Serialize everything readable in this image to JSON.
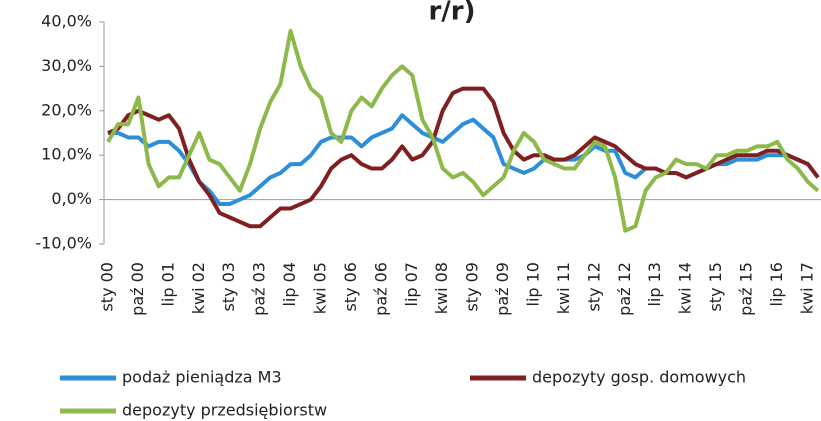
{
  "chart_data": {
    "type": "line",
    "title": "r/r)",
    "categories": [
      "sty 00",
      null,
      null,
      "paź 00",
      null,
      null,
      "lip 01",
      null,
      null,
      "kwi 02",
      null,
      null,
      "sty 03",
      null,
      null,
      "paź 03",
      null,
      null,
      "lip 04",
      null,
      null,
      "kwi 05",
      null,
      null,
      "sty 06",
      null,
      null,
      "paź 06",
      null,
      null,
      "lip 07",
      null,
      null,
      "kwi 08",
      null,
      null,
      "sty 09",
      null,
      null,
      "paź 09",
      null,
      null,
      "lip 10",
      null,
      null,
      "kwi 11",
      null,
      null,
      "sty 12",
      null,
      null,
      "paź 12",
      null,
      null,
      "lip 13",
      null,
      null,
      "kwi 14",
      null,
      null,
      "sty 15",
      null,
      null,
      "paź 15",
      null,
      null,
      "lip 16",
      null,
      null,
      "kwi 17",
      null
    ],
    "series": [
      {
        "name": "podaż pieniądza M3",
        "color": "#2e8fd8",
        "values": [
          15,
          15,
          14,
          14,
          12,
          13,
          13,
          11,
          8,
          4,
          2,
          -1,
          -1,
          0,
          1,
          3,
          5,
          6,
          8,
          8,
          10,
          13,
          14,
          14,
          14,
          12,
          14,
          15,
          16,
          19,
          17,
          15,
          14,
          13,
          15,
          17,
          18,
          16,
          14,
          8,
          7,
          6,
          7,
          9,
          9,
          9,
          9,
          10,
          12,
          11,
          11,
          6,
          5,
          7,
          7,
          6,
          6,
          5,
          6,
          7,
          8,
          8,
          9,
          9,
          9,
          10,
          10,
          10,
          9,
          8,
          5
        ]
      },
      {
        "name": "depozyty gosp. domowych",
        "color": "#7f1f1f",
        "values": [
          15,
          16,
          19,
          20,
          19,
          18,
          19,
          16,
          9,
          4,
          1,
          -3,
          -4,
          -5,
          -6,
          -6,
          -4,
          -2,
          -2,
          -1,
          0,
          3,
          7,
          9,
          10,
          8,
          7,
          7,
          9,
          12,
          9,
          10,
          13,
          20,
          24,
          25,
          25,
          25,
          22,
          15,
          11,
          9,
          10,
          10,
          9,
          9,
          10,
          12,
          14,
          13,
          12,
          10,
          8,
          7,
          7,
          6,
          6,
          5,
          6,
          7,
          8,
          9,
          10,
          10,
          10,
          11,
          11,
          10,
          9,
          8,
          5
        ]
      },
      {
        "name": "depozyty przedsiębiorstw",
        "color": "#8db84a",
        "values": [
          13,
          17,
          17,
          23,
          8,
          3,
          5,
          5,
          10,
          15,
          9,
          8,
          5,
          2,
          8,
          16,
          22,
          26,
          38,
          30,
          25,
          23,
          15,
          13,
          20,
          23,
          21,
          25,
          28,
          30,
          28,
          18,
          14,
          7,
          5,
          6,
          4,
          1,
          3,
          5,
          11,
          15,
          13,
          9,
          8,
          7,
          7,
          10,
          13,
          12,
          5,
          -7,
          -6,
          2,
          5,
          6,
          9,
          8,
          8,
          7,
          10,
          10,
          11,
          11,
          12,
          12,
          13,
          9,
          7,
          4,
          2
        ]
      }
    ],
    "ylim": [
      -10,
      40
    ],
    "yticks": [
      {
        "value": -10,
        "label": "-10,0%"
      },
      {
        "value": 0,
        "label": "0,0%"
      },
      {
        "value": 10,
        "label": "10,0%"
      },
      {
        "value": 20,
        "label": "20,0%"
      },
      {
        "value": 30,
        "label": "30,0%"
      },
      {
        "value": 40,
        "label": "40,0%"
      }
    ],
    "legend": "bottom"
  }
}
